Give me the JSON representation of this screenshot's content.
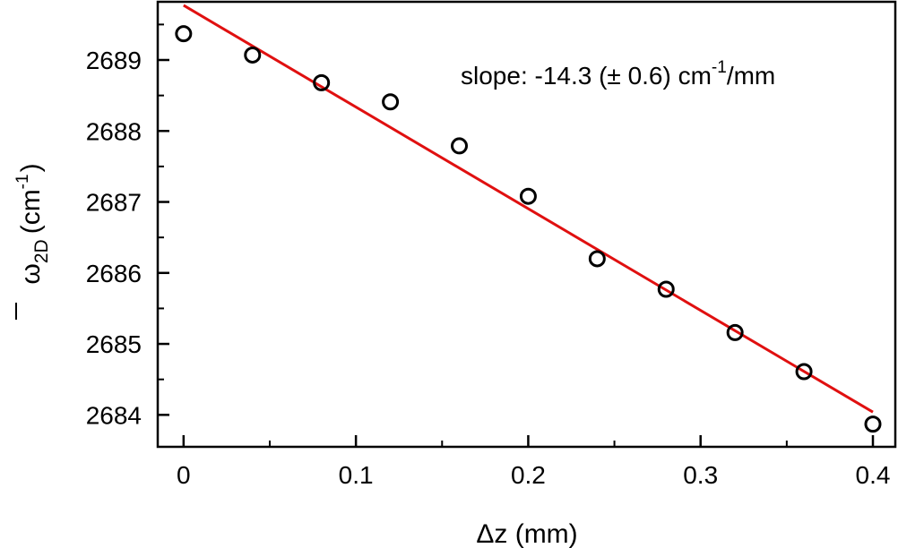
{
  "chart_data": {
    "type": "scatter",
    "title": "",
    "xlabel": "Δz (mm)",
    "ylabel": {
      "symbol": "ω",
      "subscript": "2D",
      "unit_open": "(cm",
      "unit_exp": "-1",
      "unit_close": ")"
    },
    "xlim": [
      -0.015,
      0.413
    ],
    "ylim": [
      2683.55,
      2689.82
    ],
    "x_ticks": [
      0,
      0.1,
      0.2,
      0.3,
      0.4
    ],
    "x_tick_labels": [
      "0",
      "0.1",
      "0.2",
      "0.3",
      "0.4"
    ],
    "x_minor_ticks": [
      0.05,
      0.15,
      0.25,
      0.35
    ],
    "y_ticks": [
      2684,
      2685,
      2686,
      2687,
      2688,
      2689
    ],
    "y_tick_labels": [
      "2684",
      "2685",
      "2686",
      "2687",
      "2688",
      "2689"
    ],
    "y_minor_ticks": [
      2684.5,
      2685.5,
      2686.5,
      2687.5,
      2688.5,
      2689.5
    ],
    "grid": false,
    "series": [
      {
        "marker": "open-circle",
        "color": "#000000",
        "x": [
          0,
          0.04,
          0.08,
          0.12,
          0.16,
          0.2,
          0.24,
          0.28,
          0.32,
          0.36,
          0.4
        ],
        "y": [
          2689.37,
          2689.07,
          2688.68,
          2688.41,
          2687.79,
          2687.08,
          2686.2,
          2685.77,
          2685.16,
          2684.61,
          2683.87
        ]
      }
    ],
    "fit_line": {
      "color": "#e01010",
      "x": [
        0,
        0.4
      ],
      "y": [
        2689.77,
        2684.04
      ]
    },
    "annotation": {
      "prefix": "slope: -14.3 (± 0.6) cm",
      "exp": "-1",
      "suffix": "/mm"
    }
  }
}
